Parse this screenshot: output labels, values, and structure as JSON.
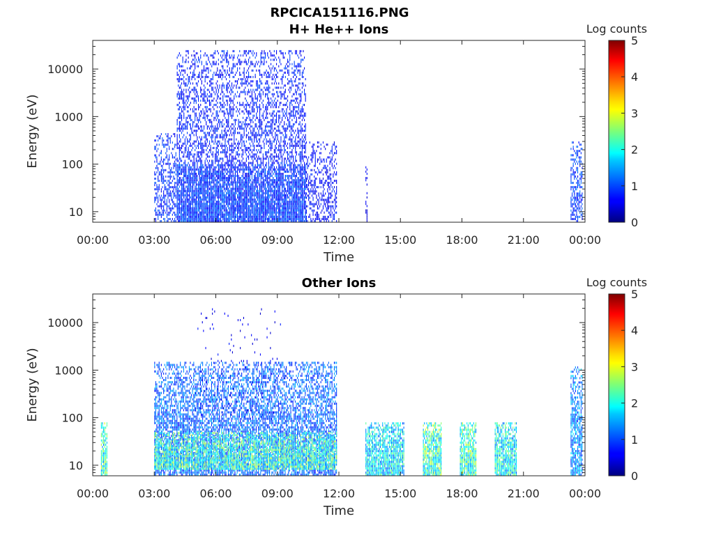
{
  "figure": {
    "title": "RPCICA151116.PNG"
  },
  "chart_data": [
    {
      "type": "heatmap",
      "title": "H+ He++ Ions",
      "xlabel": "Time",
      "ylabel": "Energy (eV)",
      "x_ticks": [
        "00:00",
        "03:00",
        "06:00",
        "09:00",
        "12:00",
        "15:00",
        "18:00",
        "21:00",
        "00:00"
      ],
      "xlim_hours": [
        0,
        24
      ],
      "y_scale": "log",
      "y_ticks": [
        "10",
        "100",
        "1000",
        "10000"
      ],
      "ylim": [
        6,
        40000
      ],
      "colorbar": {
        "label": "Log counts",
        "ticks": [
          "0",
          "1",
          "2",
          "3",
          "4",
          "5"
        ],
        "range": [
          0,
          5
        ],
        "colormap": "jet"
      },
      "blocks": [
        {
          "t0": 3.0,
          "t1": 4.1,
          "emin": 6,
          "emax": 450,
          "level": 0.9,
          "density": 0.55
        },
        {
          "t0": 4.1,
          "t1": 10.4,
          "emin": 6,
          "emax": 25000,
          "level": 0.8,
          "density": 0.55
        },
        {
          "t0": 4.1,
          "t1": 10.4,
          "emin": 6,
          "emax": 100,
          "level": 1.0,
          "density": 0.85
        },
        {
          "t0": 10.4,
          "t1": 11.9,
          "emin": 6,
          "emax": 300,
          "level": 0.7,
          "density": 0.45
        },
        {
          "t0": 13.3,
          "t1": 13.4,
          "emin": 6,
          "emax": 100,
          "level": 0.6,
          "density": 0.5
        },
        {
          "t0": 23.3,
          "t1": 23.9,
          "emin": 6,
          "emax": 300,
          "level": 1.0,
          "density": 0.6
        }
      ]
    },
    {
      "type": "heatmap",
      "title": "Other Ions",
      "xlabel": "Time",
      "ylabel": "Energy (eV)",
      "x_ticks": [
        "00:00",
        "03:00",
        "06:00",
        "09:00",
        "12:00",
        "15:00",
        "18:00",
        "21:00",
        "00:00"
      ],
      "xlim_hours": [
        0,
        24
      ],
      "y_scale": "log",
      "y_ticks": [
        "10",
        "100",
        "1000",
        "10000"
      ],
      "ylim": [
        6,
        40000
      ],
      "colorbar": {
        "label": "Log counts",
        "ticks": [
          "0",
          "1",
          "2",
          "3",
          "4",
          "5"
        ],
        "range": [
          0,
          5
        ],
        "colormap": "jet"
      },
      "blocks": [
        {
          "t0": 0.4,
          "t1": 0.75,
          "emin": 6,
          "emax": 80,
          "level": 2.3,
          "density": 0.95
        },
        {
          "t0": 3.0,
          "t1": 11.9,
          "emin": 6,
          "emax": 1500,
          "level": 1.2,
          "density": 0.75
        },
        {
          "t0": 3.0,
          "t1": 11.9,
          "emin": 8,
          "emax": 50,
          "level": 2.2,
          "density": 0.9
        },
        {
          "t0": 5.0,
          "t1": 9.5,
          "emin": 80,
          "emax": 20000,
          "level": 0.6,
          "density": 0.04
        },
        {
          "t0": 13.3,
          "t1": 15.2,
          "emin": 6,
          "emax": 80,
          "level": 1.9,
          "density": 0.95
        },
        {
          "t0": 16.1,
          "t1": 17.0,
          "emin": 6,
          "emax": 80,
          "level": 2.3,
          "density": 0.95
        },
        {
          "t0": 17.9,
          "t1": 18.7,
          "emin": 6,
          "emax": 80,
          "level": 2.3,
          "density": 0.95
        },
        {
          "t0": 19.6,
          "t1": 20.7,
          "emin": 6,
          "emax": 80,
          "level": 2.0,
          "density": 0.95
        },
        {
          "t0": 23.3,
          "t1": 23.9,
          "emin": 6,
          "emax": 1200,
          "level": 1.4,
          "density": 0.8
        }
      ]
    }
  ]
}
